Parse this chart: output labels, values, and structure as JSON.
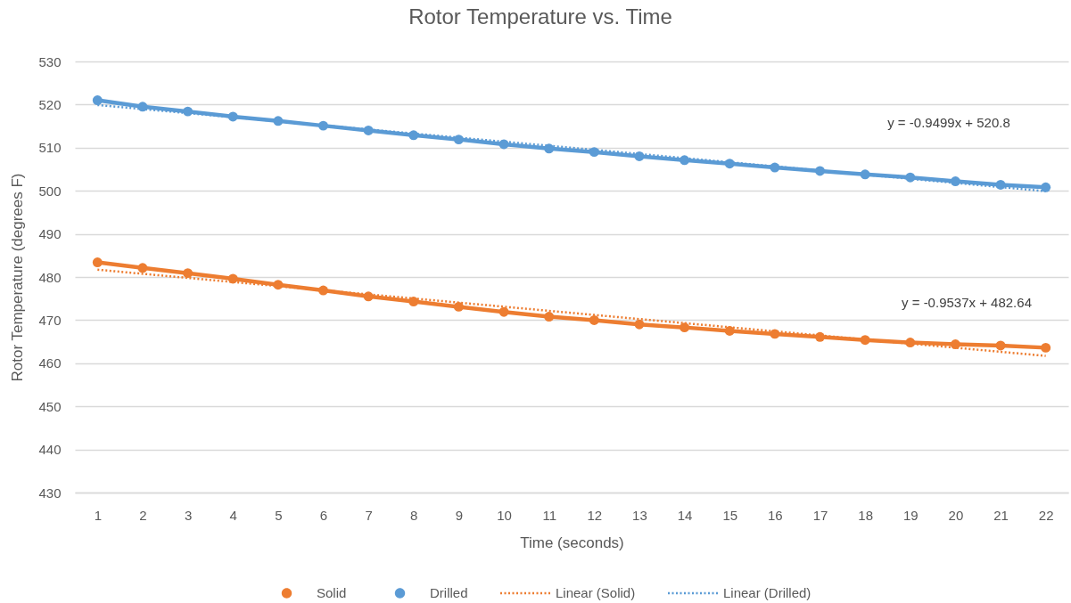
{
  "chart_data": {
    "type": "line",
    "title": "Rotor Temperature vs. Time",
    "xlabel": "Time (seconds)",
    "ylabel": "Rotor Temperature (degrees F)",
    "x": [
      1,
      2,
      3,
      4,
      5,
      6,
      7,
      8,
      9,
      10,
      11,
      12,
      13,
      14,
      15,
      16,
      17,
      18,
      19,
      20,
      21,
      22
    ],
    "series": [
      {
        "name": "Solid",
        "color": "#ed7d31",
        "marker": "circle",
        "line_style": "solid",
        "values": [
          483.4,
          482.1,
          480.9,
          479.6,
          478.2,
          476.9,
          475.5,
          474.3,
          473.1,
          471.9,
          470.8,
          470.0,
          469.0,
          468.3,
          467.5,
          466.8,
          466.1,
          465.4,
          464.8,
          464.4,
          464.1,
          463.6
        ]
      },
      {
        "name": "Drilled",
        "color": "#5b9bd5",
        "marker": "circle",
        "line_style": "solid",
        "values": [
          521.0,
          519.5,
          518.4,
          517.2,
          516.2,
          515.1,
          514.0,
          512.9,
          511.9,
          510.8,
          509.8,
          509.0,
          508.0,
          507.1,
          506.3,
          505.4,
          504.6,
          503.8,
          503.1,
          502.2,
          501.4,
          500.8
        ]
      },
      {
        "name": "Linear (Solid)",
        "type": "line",
        "color": "#ed7d31",
        "marker": "none",
        "line_style": "dotted",
        "x": [
          1,
          12,
          22
        ],
        "values": [
          481.7,
          471.2,
          461.7
        ]
      },
      {
        "name": "Linear (Drilled)",
        "type": "line",
        "color": "#5b9bd5",
        "marker": "none",
        "line_style": "dotted",
        "x": [
          1,
          12,
          22
        ],
        "values": [
          519.9,
          509.5,
          499.9
        ]
      }
    ],
    "annotations": [
      "y = -0.9499x + 520.8",
      "y = -0.9537x + 482.64"
    ],
    "xlim": [
      0.5,
      22.5
    ],
    "xticks": [
      1,
      2,
      3,
      4,
      5,
      6,
      7,
      8,
      9,
      10,
      11,
      12,
      13,
      14,
      15,
      16,
      17,
      18,
      19,
      20,
      21,
      22
    ],
    "ylim": [
      430,
      530
    ],
    "yticks": [
      430,
      440,
      450,
      460,
      470,
      480,
      490,
      500,
      510,
      520,
      530
    ],
    "grid": "y",
    "legend": "bottom"
  }
}
